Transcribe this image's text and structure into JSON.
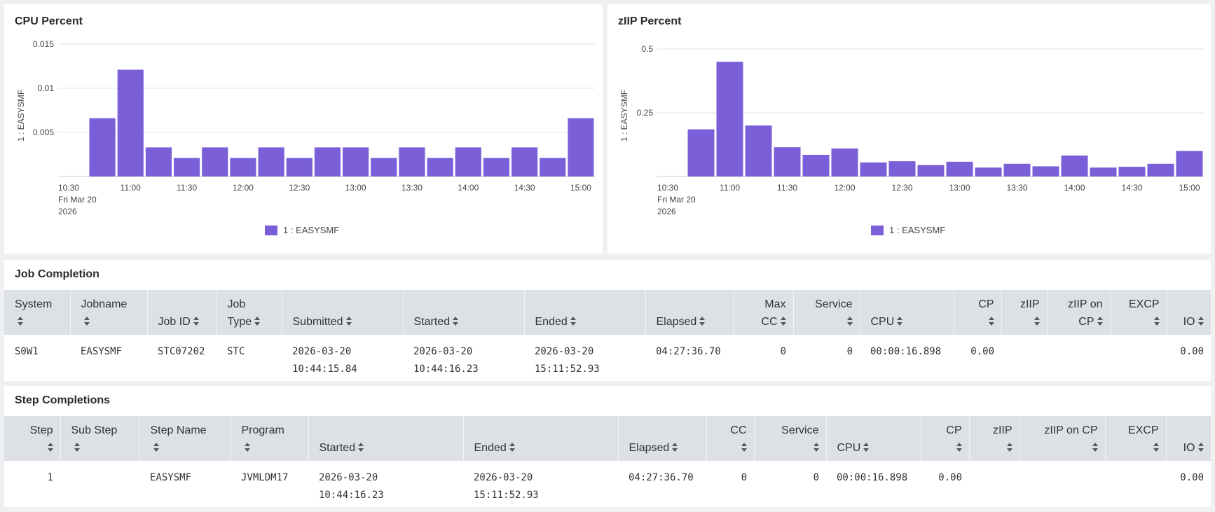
{
  "colors": {
    "bar": "#7a5fd9",
    "grid": "#e3e3e3",
    "header_bg": "#dde1e6"
  },
  "cpu_panel": {
    "title": "CPU Percent",
    "ylabel": "1 : EASYSMF",
    "legend": "1 : EASYSMF",
    "x_first_tick": {
      "line1": "10:30",
      "line2": "Fri Mar 20",
      "line3": "2026"
    },
    "chart_data": {
      "type": "bar",
      "title": "CPU Percent",
      "ylabel": "1 : EASYSMF",
      "ylim": [
        0,
        0.015
      ],
      "yticks": [
        "0.015",
        "0.01",
        "0.005"
      ],
      "yticks_values": [
        0.015,
        0.01,
        0.005
      ],
      "xticks": [
        "10:30",
        "11:00",
        "11:30",
        "12:00",
        "12:30",
        "13:00",
        "13:30",
        "14:00",
        "14:30",
        "15:00"
      ],
      "series": [
        {
          "name": "1 : EASYSMF",
          "values": [
            0.0066,
            0.0121,
            0.0033,
            0.0021,
            0.0033,
            0.0021,
            0.0033,
            0.0021,
            0.0033,
            0.0033,
            0.0021,
            0.0033,
            0.0021,
            0.0033,
            0.0021,
            0.0033,
            0.0021,
            0.0066
          ]
        }
      ]
    }
  },
  "ziip_panel": {
    "title": "zIIP Percent",
    "ylabel": "1 : EASYSMF",
    "legend": "1 : EASYSMF",
    "x_first_tick": {
      "line1": "10:30",
      "line2": "Fri Mar 20",
      "line3": "2026"
    },
    "chart_data": {
      "type": "bar",
      "title": "zIIP Percent",
      "ylabel": "1 : EASYSMF",
      "ylim": [
        0,
        0.5
      ],
      "yticks": [
        "0.5",
        "0.25"
      ],
      "yticks_values": [
        0.5,
        0.25
      ],
      "xticks": [
        "10:30",
        "11:00",
        "11:30",
        "12:00",
        "12:30",
        "13:00",
        "13:30",
        "14:00",
        "14:30",
        "15:00"
      ],
      "series": [
        {
          "name": "1 : EASYSMF",
          "values": [
            0.185,
            0.45,
            0.2,
            0.115,
            0.085,
            0.11,
            0.055,
            0.06,
            0.045,
            0.058,
            0.035,
            0.05,
            0.04,
            0.082,
            0.035,
            0.038,
            0.05,
            0.1
          ]
        }
      ]
    }
  },
  "job_completion": {
    "title": "Job Completion",
    "headers": [
      {
        "l1": "System",
        "l2": ""
      },
      {
        "l1": "Jobname",
        "l2": ""
      },
      {
        "l1": "",
        "l2": "Job ID"
      },
      {
        "l1": "Job",
        "l2": "Type"
      },
      {
        "l1": "",
        "l2": "Submitted"
      },
      {
        "l1": "",
        "l2": "Started"
      },
      {
        "l1": "",
        "l2": "Ended"
      },
      {
        "l1": "",
        "l2": "Elapsed"
      },
      {
        "l1": "Max",
        "l2": "CC"
      },
      {
        "l1": "Service",
        "l2": ""
      },
      {
        "l1": "",
        "l2": "CPU"
      },
      {
        "l1": "CP",
        "l2": ""
      },
      {
        "l1": "zIIP",
        "l2": ""
      },
      {
        "l1": "zIIP on",
        "l2": "CP"
      },
      {
        "l1": "EXCP",
        "l2": ""
      },
      {
        "l1": "",
        "l2": "IO"
      }
    ],
    "rows": [
      {
        "system": "S0W1",
        "jobname": "EASYSMF",
        "job_id": "STC07202",
        "job_type": "STC",
        "submitted_date": "2026-03-20",
        "submitted_time": "10:44:15.84",
        "started_date": "2026-03-20",
        "started_time": "10:44:16.23",
        "ended_date": "2026-03-20",
        "ended_time": "15:11:52.93",
        "elapsed": "04:27:36.70",
        "max_cc": "0",
        "service": "0",
        "cpu": "00:00:16.898",
        "cp": "0.00",
        "ziip": "",
        "ziip_on_cp": "",
        "excp": "",
        "io": "0.00"
      }
    ]
  },
  "step_completions": {
    "title": "Step Completions",
    "headers": [
      {
        "l1": "Step",
        "l2": ""
      },
      {
        "l1": "Sub Step",
        "l2": ""
      },
      {
        "l1": "Step Name",
        "l2": ""
      },
      {
        "l1": "Program",
        "l2": ""
      },
      {
        "l1": "",
        "l2": "Started"
      },
      {
        "l1": "",
        "l2": "Ended"
      },
      {
        "l1": "",
        "l2": "Elapsed"
      },
      {
        "l1": "CC",
        "l2": ""
      },
      {
        "l1": "Service",
        "l2": ""
      },
      {
        "l1": "",
        "l2": "CPU"
      },
      {
        "l1": "CP",
        "l2": ""
      },
      {
        "l1": "zIIP",
        "l2": ""
      },
      {
        "l1": "zIIP on CP",
        "l2": ""
      },
      {
        "l1": "EXCP",
        "l2": ""
      },
      {
        "l1": "",
        "l2": "IO"
      }
    ],
    "rows": [
      {
        "step": "1",
        "sub_step": "",
        "step_name": "EASYSMF",
        "program": "JVMLDM17",
        "started_date": "2026-03-20",
        "started_time": "10:44:16.23",
        "ended_date": "2026-03-20",
        "ended_time": "15:11:52.93",
        "elapsed": "04:27:36.70",
        "cc": "0",
        "service": "0",
        "cpu": "00:00:16.898",
        "cp": "0.00",
        "ziip": "",
        "ziip_on_cp": "",
        "excp": "",
        "io": "0.00"
      }
    ]
  }
}
